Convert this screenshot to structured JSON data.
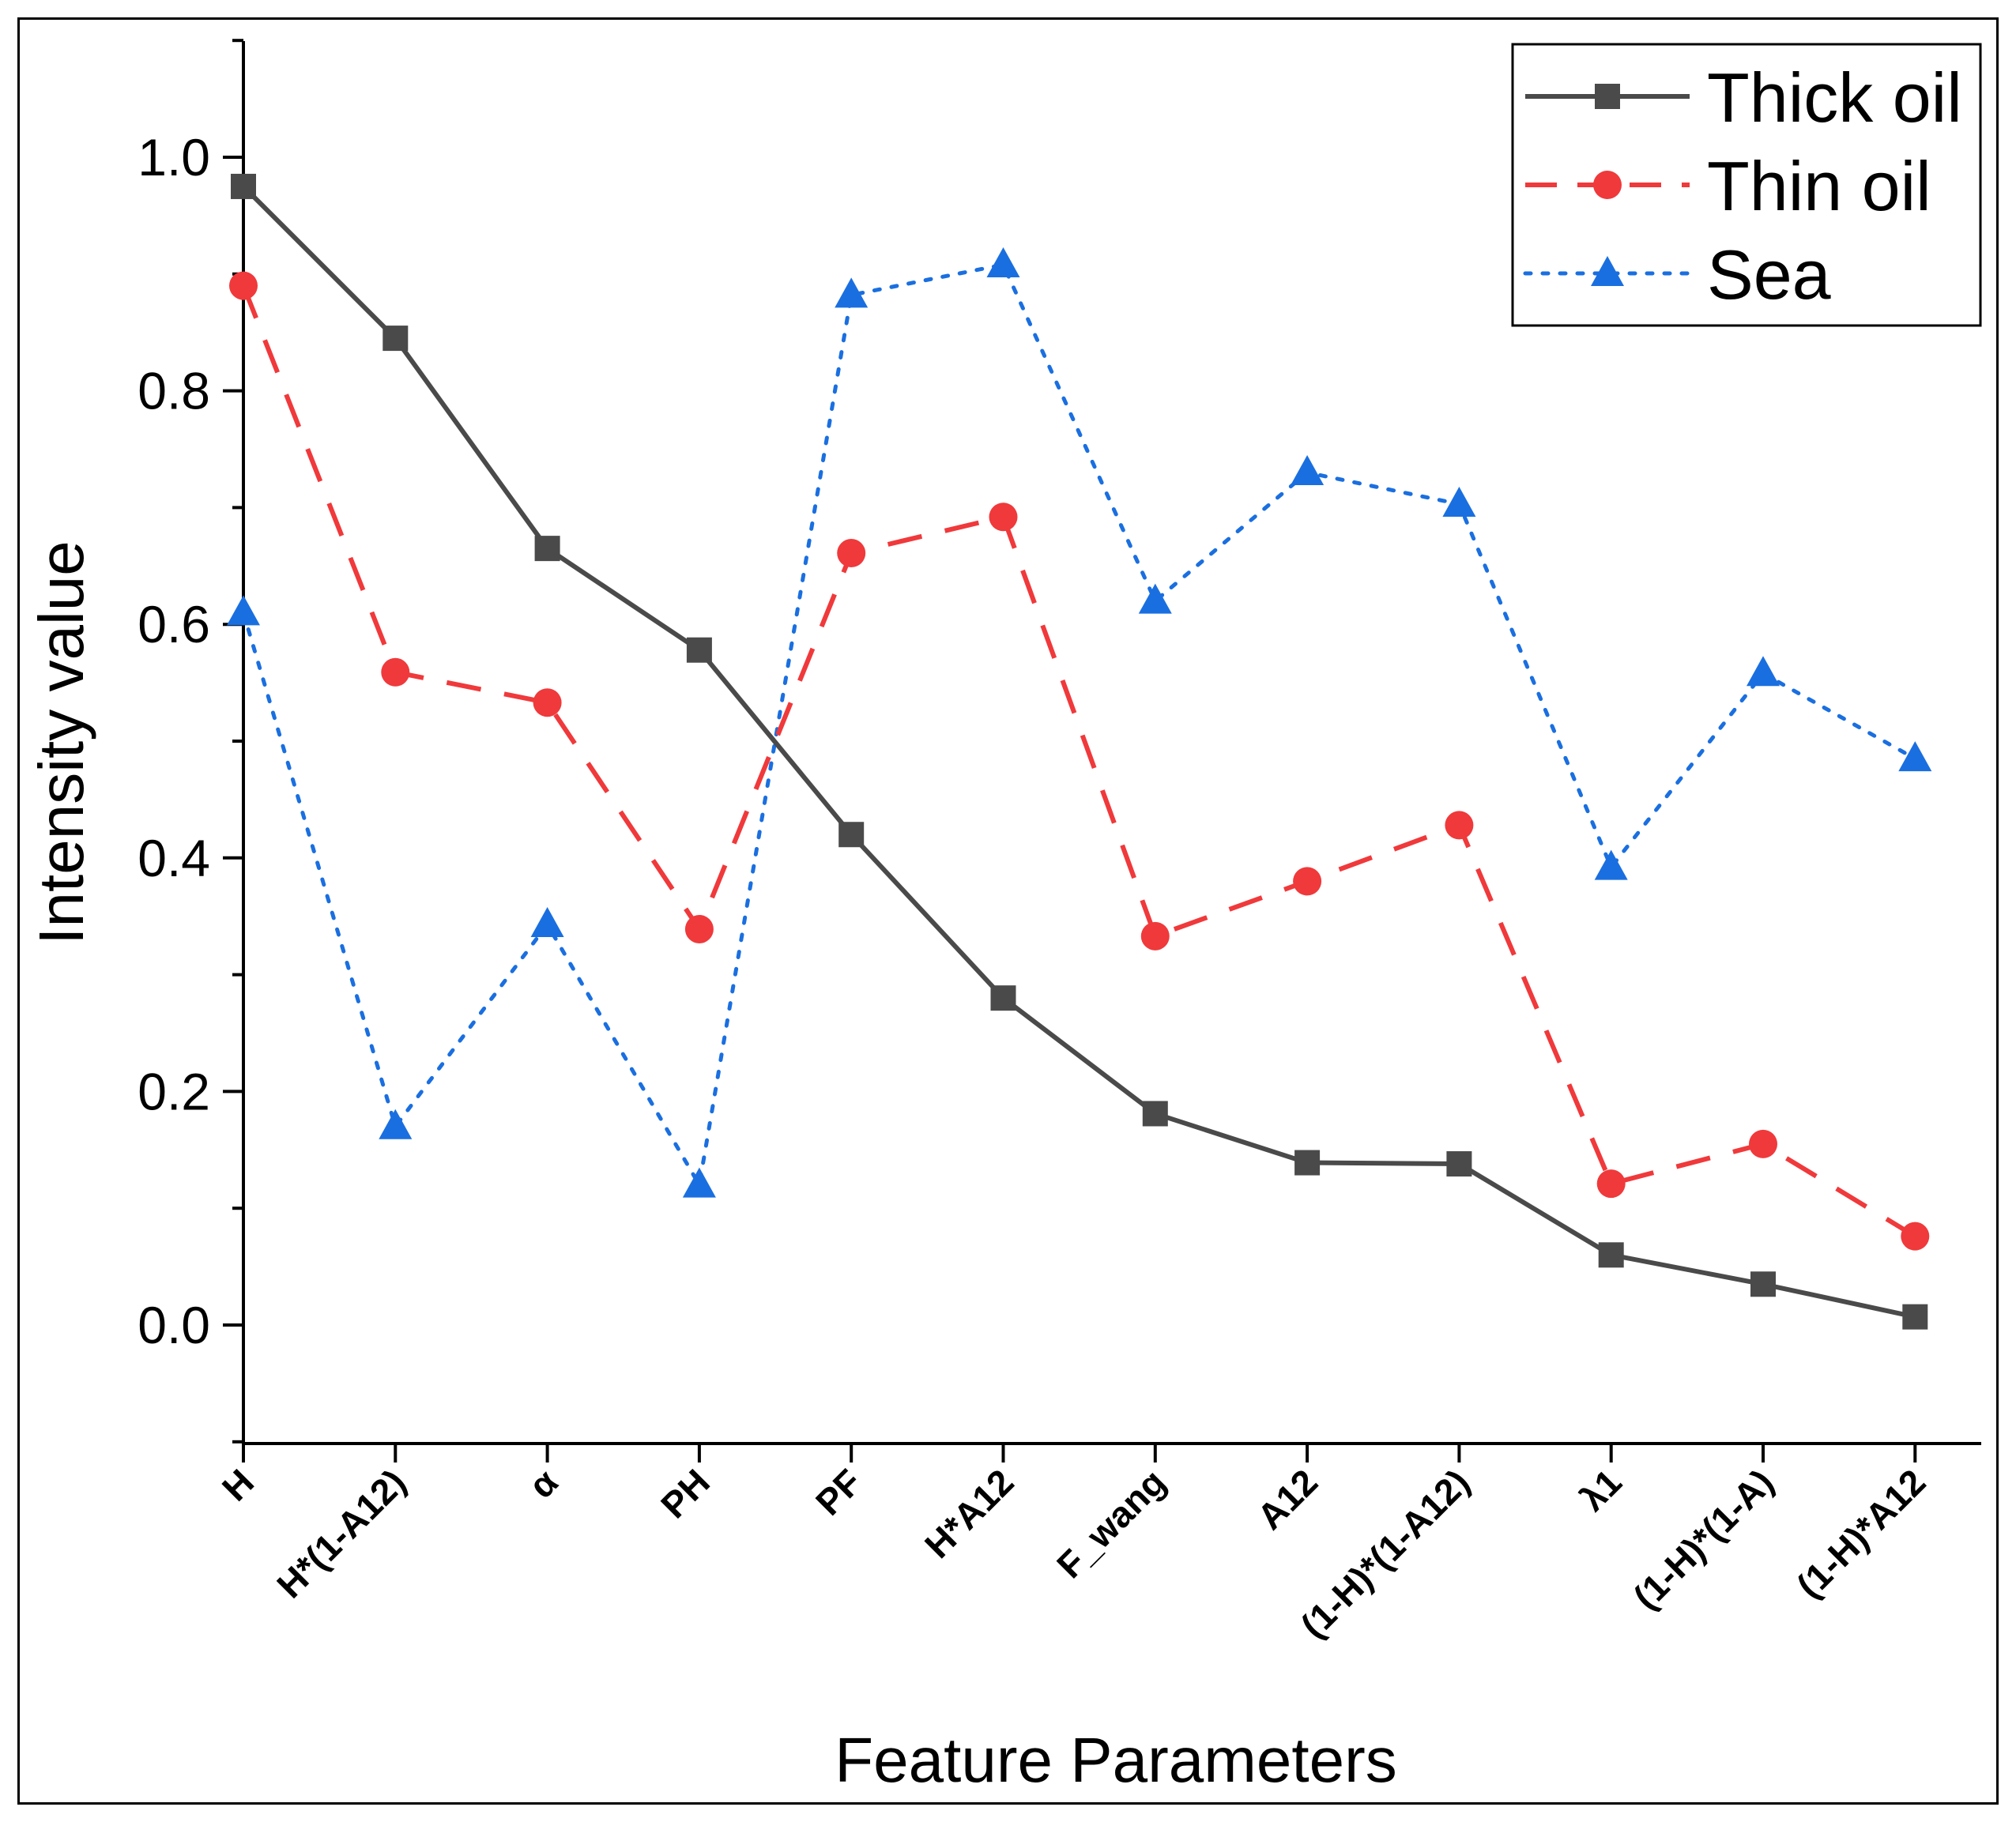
{
  "chart_data": {
    "type": "line",
    "title": "",
    "xlabel": "Feature Parameters",
    "ylabel": "Intensity value",
    "ylim": [
      -0.1,
      1.1
    ],
    "yticks": [
      "0.0",
      "0.2",
      "0.4",
      "0.6",
      "0.8",
      "1.0"
    ],
    "grid": false,
    "legend_position": "top-right",
    "categories": [
      "H",
      "H*(1-A12)",
      "α",
      "PH",
      "PF",
      "H*A12",
      "F_wang",
      "A12",
      "(1-H)*(1-A12)",
      "λ1",
      "(1-H)*(1-A)",
      "(1-H)*A12"
    ],
    "series": [
      {
        "name": "Thick oil",
        "color": "#4a4a4a",
        "marker": "square",
        "line_style": "solid",
        "values": [
          0.975,
          0.845,
          0.665,
          0.578,
          0.42,
          0.28,
          0.181,
          0.139,
          0.138,
          0.06,
          0.035,
          0.007
        ]
      },
      {
        "name": "Thin oil",
        "color": "#f0393b",
        "marker": "circle",
        "line_style": "dashed",
        "values": [
          0.89,
          0.559,
          0.533,
          0.339,
          0.661,
          0.692,
          0.333,
          0.38,
          0.428,
          0.121,
          0.155,
          0.076
        ]
      },
      {
        "name": "Sea",
        "color": "#1a6fe0",
        "marker": "triangle",
        "line_style": "dotted",
        "values": [
          0.61,
          0.17,
          0.343,
          0.12,
          0.882,
          0.908,
          0.62,
          0.73,
          0.703,
          0.392,
          0.558,
          0.485
        ]
      }
    ]
  }
}
